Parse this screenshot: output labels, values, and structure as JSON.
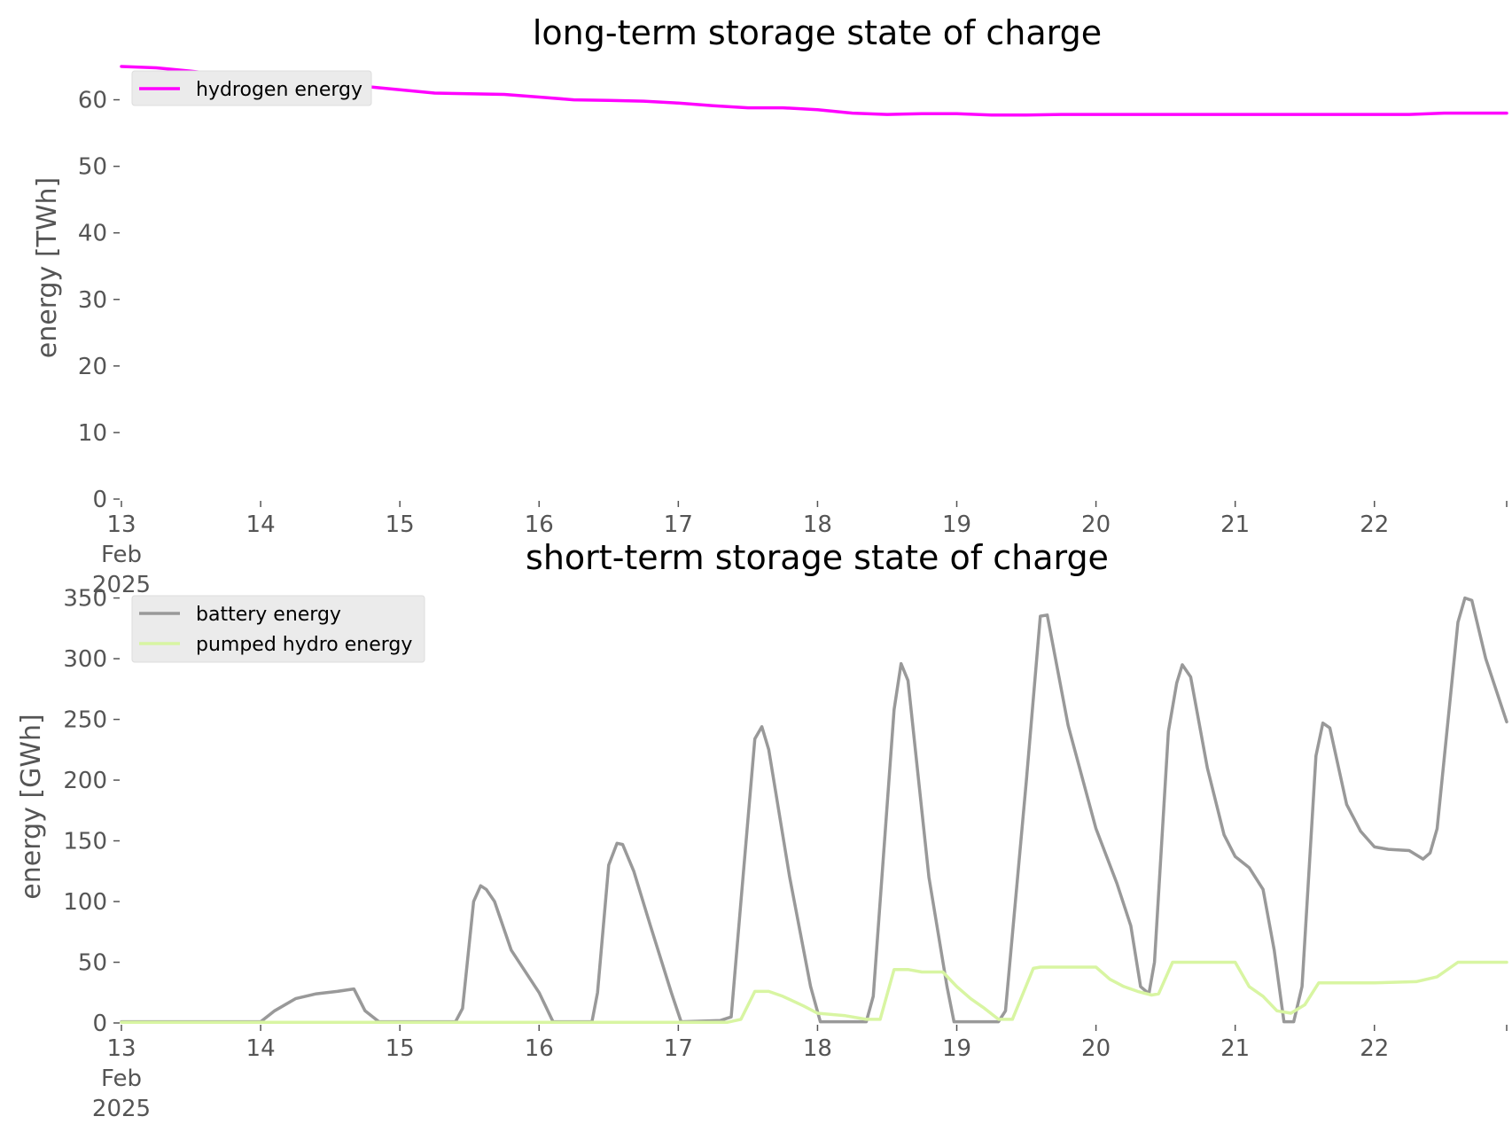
{
  "colors": {
    "hydrogen": "#ff00ff",
    "battery": "#999999",
    "pumped_hydro": "#d8f5a2",
    "axis_text": "#555555",
    "legend_bg": "#ebebeb"
  },
  "chart_data": [
    {
      "type": "line",
      "title": "long-term storage state of charge",
      "xlabel": "",
      "ylabel": "energy [TWh]",
      "xlim": [
        13,
        22.95
      ],
      "ylim": [
        0,
        67
      ],
      "xticks": [
        {
          "value": 13,
          "lines": [
            "13",
            "Feb",
            "2025"
          ]
        },
        {
          "value": 14,
          "lines": [
            "14"
          ]
        },
        {
          "value": 15,
          "lines": [
            "15"
          ]
        },
        {
          "value": 16,
          "lines": [
            "16"
          ]
        },
        {
          "value": 17,
          "lines": [
            "17"
          ]
        },
        {
          "value": 18,
          "lines": [
            "18"
          ]
        },
        {
          "value": 19,
          "lines": [
            "19"
          ]
        },
        {
          "value": 20,
          "lines": [
            "20"
          ]
        },
        {
          "value": 21,
          "lines": [
            "21"
          ]
        },
        {
          "value": 22,
          "lines": [
            "22"
          ]
        }
      ],
      "yticks": [
        "0",
        "10",
        "20",
        "30",
        "40",
        "50",
        "60"
      ],
      "legend_position": "upper-left",
      "grid": false,
      "series": [
        {
          "name": "hydrogen energy",
          "color_key": "hydrogen",
          "points": [
            [
              13.0,
              65.0
            ],
            [
              13.25,
              64.8
            ],
            [
              13.5,
              64.3
            ],
            [
              13.75,
              63.7
            ],
            [
              14.0,
              63.3
            ],
            [
              14.25,
              62.9
            ],
            [
              14.5,
              62.5
            ],
            [
              14.75,
              62.0
            ],
            [
              15.0,
              61.5
            ],
            [
              15.25,
              61.0
            ],
            [
              15.5,
              60.9
            ],
            [
              15.75,
              60.8
            ],
            [
              16.0,
              60.4
            ],
            [
              16.25,
              60.0
            ],
            [
              16.5,
              59.9
            ],
            [
              16.75,
              59.8
            ],
            [
              17.0,
              59.5
            ],
            [
              17.25,
              59.1
            ],
            [
              17.5,
              58.8
            ],
            [
              17.75,
              58.8
            ],
            [
              18.0,
              58.5
            ],
            [
              18.25,
              58.0
            ],
            [
              18.5,
              57.8
            ],
            [
              18.75,
              57.9
            ],
            [
              19.0,
              57.9
            ],
            [
              19.25,
              57.7
            ],
            [
              19.5,
              57.7
            ],
            [
              19.75,
              57.8
            ],
            [
              20.0,
              57.8
            ],
            [
              20.5,
              57.8
            ],
            [
              21.0,
              57.8
            ],
            [
              21.5,
              57.8
            ],
            [
              22.0,
              57.8
            ],
            [
              22.25,
              57.8
            ],
            [
              22.5,
              58.0
            ],
            [
              22.95,
              58.0
            ]
          ]
        }
      ]
    },
    {
      "type": "line",
      "title": "short-term storage state of charge",
      "xlabel": "",
      "ylabel": "energy [GWh]",
      "xlim": [
        13,
        22.95
      ],
      "ylim": [
        0,
        357
      ],
      "xticks": [
        {
          "value": 13,
          "lines": [
            "13",
            "Feb",
            "2025"
          ]
        },
        {
          "value": 14,
          "lines": [
            "14"
          ]
        },
        {
          "value": 15,
          "lines": [
            "15"
          ]
        },
        {
          "value": 16,
          "lines": [
            "16"
          ]
        },
        {
          "value": 17,
          "lines": [
            "17"
          ]
        },
        {
          "value": 18,
          "lines": [
            "18"
          ]
        },
        {
          "value": 19,
          "lines": [
            "19"
          ]
        },
        {
          "value": 20,
          "lines": [
            "20"
          ]
        },
        {
          "value": 21,
          "lines": [
            "21"
          ]
        },
        {
          "value": 22,
          "lines": [
            "22"
          ]
        }
      ],
      "yticks": [
        "0",
        "50",
        "100",
        "150",
        "200",
        "250",
        "300",
        "350"
      ],
      "legend_position": "upper-left",
      "grid": false,
      "series": [
        {
          "name": "battery energy",
          "color_key": "battery",
          "points": [
            [
              13.0,
              1
            ],
            [
              14.0,
              1
            ],
            [
              14.1,
              10
            ],
            [
              14.25,
              20
            ],
            [
              14.4,
              24
            ],
            [
              14.55,
              26
            ],
            [
              14.67,
              28
            ],
            [
              14.75,
              10
            ],
            [
              14.85,
              1
            ],
            [
              15.4,
              1
            ],
            [
              15.45,
              12
            ],
            [
              15.53,
              100
            ],
            [
              15.58,
              113
            ],
            [
              15.62,
              110
            ],
            [
              15.68,
              100
            ],
            [
              15.8,
              60
            ],
            [
              16.0,
              25
            ],
            [
              16.1,
              1
            ],
            [
              16.38,
              1
            ],
            [
              16.42,
              25
            ],
            [
              16.5,
              130
            ],
            [
              16.56,
              148
            ],
            [
              16.6,
              147
            ],
            [
              16.68,
              125
            ],
            [
              16.8,
              80
            ],
            [
              16.95,
              25
            ],
            [
              17.02,
              1
            ],
            [
              17.3,
              2
            ],
            [
              17.38,
              5
            ],
            [
              17.45,
              100
            ],
            [
              17.55,
              234
            ],
            [
              17.6,
              244
            ],
            [
              17.65,
              225
            ],
            [
              17.8,
              120
            ],
            [
              17.95,
              30
            ],
            [
              18.02,
              1
            ],
            [
              18.35,
              1
            ],
            [
              18.4,
              22
            ],
            [
              18.55,
              258
            ],
            [
              18.6,
              296
            ],
            [
              18.65,
              282
            ],
            [
              18.8,
              120
            ],
            [
              18.93,
              30
            ],
            [
              18.98,
              1
            ],
            [
              19.3,
              1
            ],
            [
              19.35,
              10
            ],
            [
              19.5,
              200
            ],
            [
              19.6,
              335
            ],
            [
              19.65,
              336
            ],
            [
              19.8,
              245
            ],
            [
              20.0,
              160
            ],
            [
              20.15,
              115
            ],
            [
              20.25,
              80
            ],
            [
              20.32,
              30
            ],
            [
              20.38,
              24
            ],
            [
              20.42,
              50
            ],
            [
              20.52,
              240
            ],
            [
              20.58,
              280
            ],
            [
              20.62,
              295
            ],
            [
              20.68,
              285
            ],
            [
              20.8,
              210
            ],
            [
              20.92,
              155
            ],
            [
              21.0,
              137
            ],
            [
              21.1,
              128
            ],
            [
              21.2,
              110
            ],
            [
              21.28,
              60
            ],
            [
              21.35,
              1
            ],
            [
              21.42,
              1
            ],
            [
              21.48,
              30
            ],
            [
              21.58,
              220
            ],
            [
              21.63,
              247
            ],
            [
              21.68,
              243
            ],
            [
              21.8,
              180
            ],
            [
              21.9,
              158
            ],
            [
              22.0,
              145
            ],
            [
              22.1,
              143
            ],
            [
              22.25,
              142
            ],
            [
              22.35,
              135
            ],
            [
              22.4,
              140
            ],
            [
              22.45,
              160
            ],
            [
              22.6,
              330
            ],
            [
              22.65,
              350
            ],
            [
              22.7,
              348
            ],
            [
              22.8,
              300
            ],
            [
              22.95,
              248
            ]
          ]
        },
        {
          "name": "pumped hydro energy",
          "color_key": "pumped_hydro",
          "points": [
            [
              13.0,
              0.5
            ],
            [
              17.35,
              0.5
            ],
            [
              17.45,
              3
            ],
            [
              17.55,
              26
            ],
            [
              17.65,
              26
            ],
            [
              17.75,
              22
            ],
            [
              17.9,
              14
            ],
            [
              18.0,
              8
            ],
            [
              18.2,
              6
            ],
            [
              18.35,
              3
            ],
            [
              18.45,
              3
            ],
            [
              18.55,
              44
            ],
            [
              18.65,
              44
            ],
            [
              18.75,
              42
            ],
            [
              18.9,
              42
            ],
            [
              19.0,
              30
            ],
            [
              19.1,
              20
            ],
            [
              19.2,
              12
            ],
            [
              19.3,
              3
            ],
            [
              19.4,
              3
            ],
            [
              19.55,
              45
            ],
            [
              19.6,
              46
            ],
            [
              19.75,
              46
            ],
            [
              20.0,
              46
            ],
            [
              20.1,
              36
            ],
            [
              20.2,
              30
            ],
            [
              20.3,
              26
            ],
            [
              20.4,
              23
            ],
            [
              20.45,
              24
            ],
            [
              20.55,
              50
            ],
            [
              20.7,
              50
            ],
            [
              21.0,
              50
            ],
            [
              21.1,
              30
            ],
            [
              21.2,
              22
            ],
            [
              21.3,
              10
            ],
            [
              21.4,
              8
            ],
            [
              21.5,
              15
            ],
            [
              21.6,
              33
            ],
            [
              21.8,
              33
            ],
            [
              22.0,
              33
            ],
            [
              22.3,
              34
            ],
            [
              22.45,
              38
            ],
            [
              22.6,
              50
            ],
            [
              22.95,
              50
            ]
          ]
        }
      ]
    }
  ]
}
